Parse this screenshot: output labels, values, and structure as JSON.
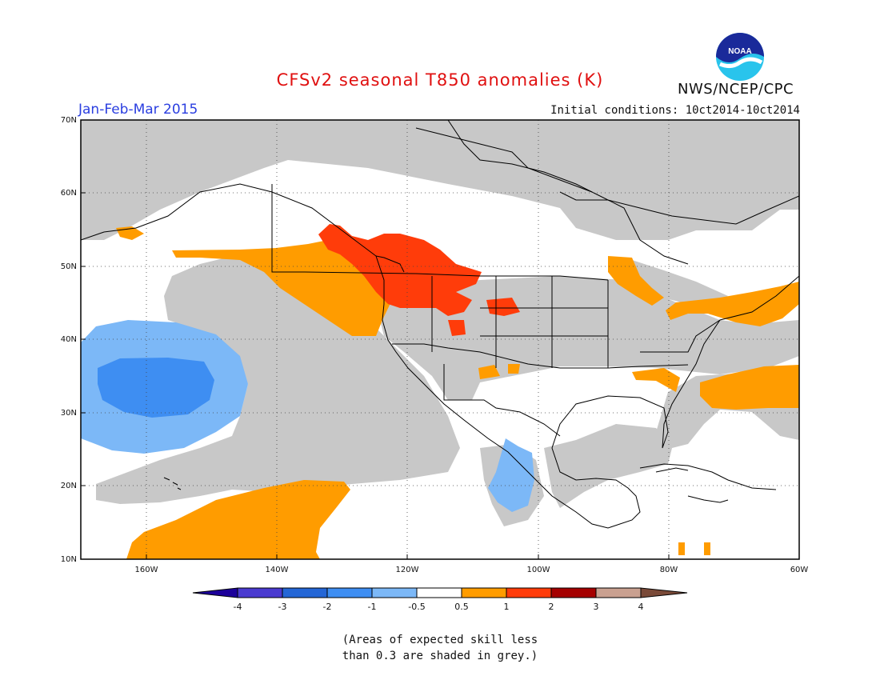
{
  "title": "CFSv2 seasonal T850 anomalies (K)",
  "period": "Jan-Feb-Mar 2015",
  "initial_conditions": "Initial conditions: 10ct2014-10ct2014",
  "organization": "NWS/NCEP/CPC",
  "logo_text": "NOAA",
  "latitude_labels": [
    "70N",
    "60N",
    "50N",
    "40N",
    "30N",
    "20N",
    "10N"
  ],
  "longitude_labels": [
    "160W",
    "140W",
    "120W",
    "100W",
    "80W",
    "60W"
  ],
  "colorbar": {
    "labels": [
      "-4",
      "-3",
      "-2",
      "-1",
      "-0.5",
      "0.5",
      "1",
      "2",
      "3",
      "4"
    ],
    "colors": [
      "#1c009a",
      "#4a3ad0",
      "#2466d6",
      "#3e8ef2",
      "#7cb8f7",
      "#ffffff",
      "#ff9c00",
      "#ff3c0a",
      "#a50000",
      "#c9a090",
      "#7a4a38"
    ]
  },
  "colors": {
    "no_skill_grey": "#c8c8c8",
    "positive_0_5_to_1": "#ff9c00",
    "positive_1_to_2": "#ff3c0a",
    "negative_0_5_to_1": "#7cb8f7",
    "negative_1_to_2": "#3e8ef2"
  },
  "note_line1": "(Areas of expected skill less",
  "note_line2": "than 0.3 are shaded in grey.)"
}
